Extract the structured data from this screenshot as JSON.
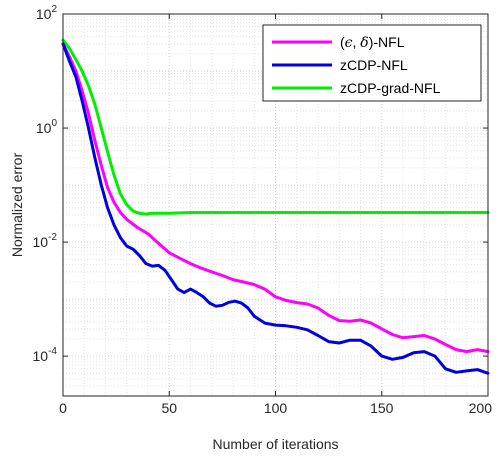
{
  "chart_data": {
    "type": "line",
    "xlabel": "Number of iterations",
    "ylabel": "Normalized error",
    "xlim": [
      0,
      200
    ],
    "ylim": [
      2e-05,
      100
    ],
    "yscale": "log",
    "x_ticks": [
      "0",
      "50",
      "100",
      "150",
      "200"
    ],
    "y_ticks": [
      {
        "base": "10",
        "exp": "2",
        "value": 100
      },
      {
        "base": "10",
        "exp": "0",
        "value": 1
      },
      {
        "base": "10",
        "exp": "-2",
        "value": 0.01
      },
      {
        "base": "10",
        "exp": "-4",
        "value": 0.0001
      }
    ],
    "grid": true,
    "legend_position": "top-right",
    "series": [
      {
        "name": "(ϵ, δ)-NFL",
        "name_parts": {
          "open": "(",
          "eps": "ϵ",
          "sep": ", ",
          "delta": "δ",
          "close": ")-NFL"
        },
        "color": "#ff00ff",
        "x": [
          0,
          3,
          6,
          9,
          12,
          15,
          18,
          21,
          24,
          27,
          30,
          35,
          40,
          45,
          50,
          55,
          60,
          65,
          70,
          75,
          80,
          85,
          90,
          95,
          100,
          105,
          110,
          115,
          120,
          125,
          130,
          135,
          140,
          145,
          150,
          155,
          160,
          165,
          170,
          175,
          180,
          185,
          190,
          195,
          200
        ],
        "y": [
          30,
          18,
          10,
          4.5,
          1.8,
          0.6,
          0.22,
          0.09,
          0.05,
          0.033,
          0.025,
          0.018,
          0.014,
          0.0095,
          0.0065,
          0.0052,
          0.0042,
          0.0035,
          0.003,
          0.0026,
          0.0022,
          0.002,
          0.0018,
          0.0015,
          0.0011,
          0.00095,
          0.00087,
          0.00082,
          0.0007,
          0.00052,
          0.00042,
          0.00041,
          0.00043,
          0.00038,
          0.0003,
          0.00024,
          0.00021,
          0.00022,
          0.00023,
          0.0002,
          0.00016,
          0.00013,
          0.00012,
          0.00013,
          0.00012
        ]
      },
      {
        "name": "zCDP-NFL",
        "color": "#0000e0",
        "x": [
          0,
          3,
          6,
          9,
          12,
          15,
          18,
          21,
          24,
          27,
          30,
          33,
          36,
          39,
          42,
          45,
          48,
          51,
          54,
          57,
          60,
          63,
          66,
          69,
          72,
          75,
          78,
          81,
          84,
          87,
          90,
          95,
          100,
          105,
          110,
          115,
          120,
          125,
          130,
          135,
          140,
          145,
          150,
          155,
          160,
          165,
          170,
          175,
          180,
          185,
          190,
          195,
          200
        ],
        "y": [
          30,
          15,
          8,
          3,
          1,
          0.3,
          0.1,
          0.04,
          0.02,
          0.012,
          0.0085,
          0.0075,
          0.0058,
          0.0042,
          0.0038,
          0.0039,
          0.0032,
          0.0022,
          0.0015,
          0.0013,
          0.0015,
          0.0013,
          0.0011,
          0.00085,
          0.00075,
          0.00078,
          0.00088,
          0.00092,
          0.00085,
          0.0007,
          0.0005,
          0.00038,
          0.00035,
          0.00034,
          0.00032,
          0.00029,
          0.00023,
          0.00018,
          0.00017,
          0.00019,
          0.00019,
          0.00015,
          0.0001,
          8.8e-05,
          9.5e-05,
          0.000115,
          0.00012,
          0.0001,
          6e-05,
          5.2e-05,
          5.5e-05,
          5.8e-05,
          5e-05
        ]
      },
      {
        "name": "zCDP-grad-NFL",
        "color": "#00ee00",
        "x": [
          0,
          3,
          6,
          9,
          12,
          15,
          18,
          21,
          24,
          27,
          30,
          33,
          36,
          39,
          42,
          45,
          50,
          60,
          70,
          80,
          90,
          100,
          110,
          120,
          130,
          140,
          150,
          160,
          170,
          180,
          190,
          200
        ],
        "y": [
          35,
          25,
          16,
          10,
          5.5,
          2.6,
          1.0,
          0.38,
          0.15,
          0.07,
          0.045,
          0.035,
          0.032,
          0.031,
          0.032,
          0.032,
          0.032,
          0.033,
          0.033,
          0.033,
          0.033,
          0.033,
          0.033,
          0.033,
          0.033,
          0.033,
          0.033,
          0.033,
          0.033,
          0.033,
          0.033,
          0.033
        ]
      }
    ]
  }
}
